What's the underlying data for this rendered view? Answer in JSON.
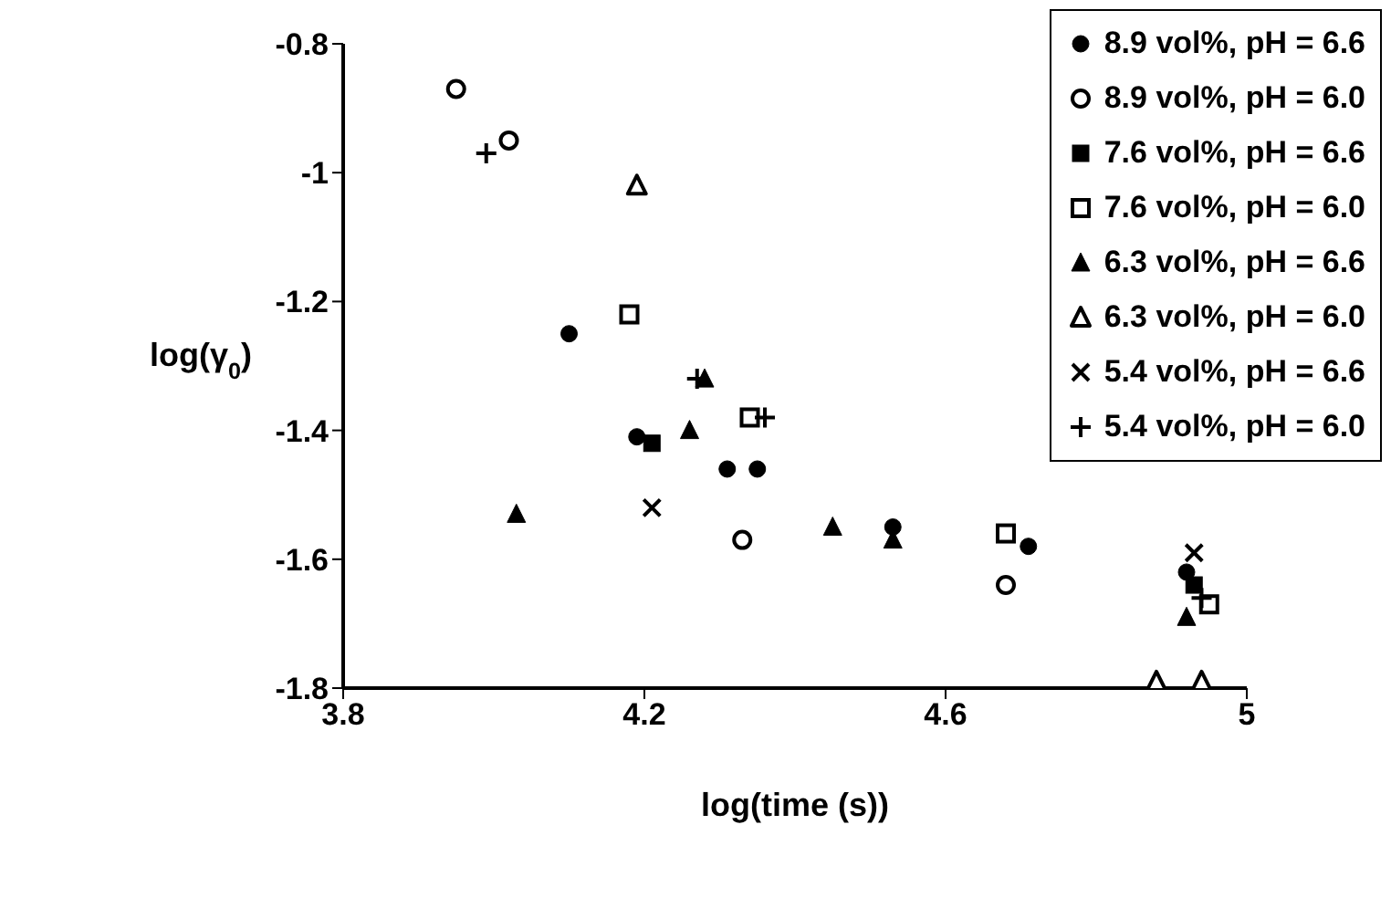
{
  "chart_data": {
    "type": "scatter",
    "xlabel": "log(time (s))",
    "ylabel": "log(γ$_{0}$)",
    "xlim": [
      3.8,
      5
    ],
    "ylim": [
      -1.8,
      -0.8
    ],
    "xticks": [
      3.8,
      4.2,
      4.6,
      5
    ],
    "yticks": [
      -1.8,
      -1.6,
      -1.4,
      -1.2,
      -1,
      -0.8
    ],
    "grid": false,
    "legend": "top right",
    "series": [
      {
        "name": "8.9 vol%, pH = 6.6",
        "color": "#000000",
        "marker": "circle",
        "x": [
          4.1,
          4.19,
          4.31,
          4.35,
          4.53,
          4.71,
          4.92
        ],
        "values": [
          -1.25,
          -1.41,
          -1.46,
          -1.46,
          -1.55,
          -1.58,
          -1.62
        ]
      },
      {
        "name": "8.9 vol%, pH = 6.0",
        "color": "#000000",
        "marker": "circle-open",
        "x": [
          3.95,
          4.02,
          4.33,
          4.68
        ],
        "values": [
          -0.87,
          -0.95,
          -1.57,
          -1.64
        ]
      },
      {
        "name": "7.6 vol%, pH = 6.6",
        "color": "#000000",
        "marker": "square",
        "x": [
          4.21,
          4.93
        ],
        "values": [
          -1.42,
          -1.64
        ]
      },
      {
        "name": "7.6 vol%, pH = 6.0",
        "color": "#000000",
        "marker": "square-open",
        "x": [
          4.18,
          4.34,
          4.68,
          4.95
        ],
        "values": [
          -1.22,
          -1.38,
          -1.56,
          -1.67
        ]
      },
      {
        "name": "6.3 vol%, pH = 6.6",
        "color": "#000000",
        "marker": "triangle",
        "x": [
          4.03,
          4.26,
          4.28,
          4.45,
          4.53,
          4.92
        ],
        "values": [
          -1.53,
          -1.4,
          -1.32,
          -1.55,
          -1.57,
          -1.69
        ]
      },
      {
        "name": "6.3 vol%, pH = 6.0",
        "color": "#000000",
        "marker": "triangle-open",
        "x": [
          4.19,
          4.88,
          4.94
        ],
        "values": [
          -1.02,
          -1.79,
          -1.79
        ]
      },
      {
        "name": "5.4 vol%, pH = 6.6",
        "color": "#000000",
        "marker": "x",
        "x": [
          4.21,
          4.93
        ],
        "values": [
          -1.52,
          -1.59
        ]
      },
      {
        "name": "5.4 vol%, pH = 6.0",
        "color": "#000000",
        "marker": "cross",
        "x": [
          3.99,
          4.27,
          4.36,
          4.94
        ],
        "values": [
          -0.97,
          -1.32,
          -1.38,
          -1.66
        ]
      }
    ]
  }
}
